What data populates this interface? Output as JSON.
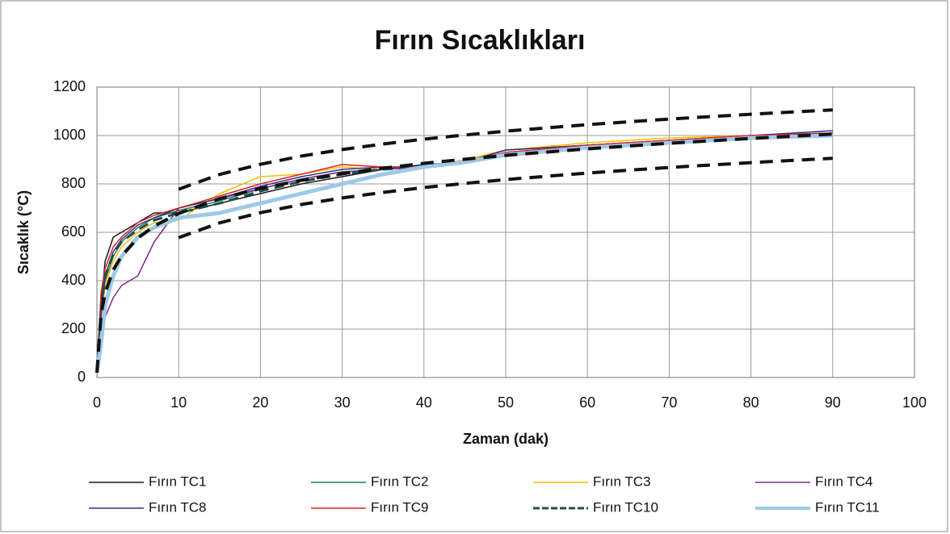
{
  "chart_data": {
    "type": "line",
    "title": "Fırın Sıcaklıkları",
    "x_label": "Zaman (dak)",
    "y_label": "Sıcaklık (°C)",
    "x": [
      0,
      0.5,
      1,
      2,
      3,
      5,
      7,
      10,
      15,
      20,
      25,
      30,
      35,
      40,
      45,
      50,
      60,
      70,
      80,
      90
    ],
    "xlim": [
      0,
      100
    ],
    "xticks": [
      0,
      10,
      20,
      30,
      40,
      50,
      60,
      70,
      80,
      90,
      100
    ],
    "ylim": [
      0,
      1200
    ],
    "yticks": [
      0,
      200,
      400,
      600,
      800,
      1000,
      1200
    ],
    "grid": true,
    "legend": "bottom",
    "series": [
      {
        "name": "Fırın TC1",
        "color": "#1a1a1a",
        "width": 1.5,
        "values": [
          20,
          300,
          480,
          580,
          600,
          640,
          680,
          680,
          720,
          760,
          800,
          830,
          860,
          880,
          890,
          940,
          960,
          980,
          1000,
          1010
        ]
      },
      {
        "name": "Fırın TC2",
        "color": "#1e7b4f",
        "width": 1.5,
        "values": [
          20,
          250,
          400,
          500,
          560,
          620,
          660,
          690,
          730,
          780,
          820,
          850,
          860,
          870,
          890,
          930,
          960,
          980,
          1000,
          1010
        ]
      },
      {
        "name": "Fırın TC3",
        "color": "#f5c000",
        "width": 1.5,
        "values": [
          20,
          220,
          380,
          480,
          540,
          600,
          640,
          650,
          760,
          830,
          840,
          870,
          860,
          870,
          900,
          940,
          970,
          990,
          1000,
          1010
        ]
      },
      {
        "name": "Fırın TC4",
        "color": "#7b2a8c",
        "width": 1.5,
        "values": [
          20,
          150,
          250,
          330,
          380,
          420,
          560,
          700,
          740,
          780,
          820,
          850,
          860,
          870,
          890,
          920,
          950,
          980,
          1000,
          1010
        ]
      },
      {
        "name": "Fırın TC8",
        "color": "#2e2e8c",
        "width": 1.5,
        "values": [
          20,
          260,
          420,
          520,
          570,
          630,
          660,
          700,
          740,
          790,
          830,
          860,
          870,
          870,
          890,
          940,
          960,
          980,
          1000,
          1020
        ]
      },
      {
        "name": "Fırın TC9",
        "color": "#e02020",
        "width": 1.5,
        "values": [
          20,
          350,
          450,
          540,
          580,
          640,
          670,
          700,
          750,
          800,
          840,
          880,
          870,
          870,
          890,
          930,
          960,
          980,
          1000,
          1010
        ]
      },
      {
        "name": "Fırın TC10",
        "color": "#1f4e4e",
        "width": 3,
        "dash": true,
        "values": [
          20,
          270,
          420,
          510,
          560,
          610,
          650,
          680,
          720,
          770,
          810,
          840,
          860,
          870,
          890,
          920,
          950,
          970,
          990,
          1000
        ]
      },
      {
        "name": "Fırın TC11",
        "color": "#9ec9e8",
        "width": 5,
        "values": [
          20,
          140,
          300,
          420,
          500,
          580,
          620,
          660,
          680,
          720,
          760,
          800,
          840,
          870,
          890,
          920,
          950,
          970,
          990,
          1000
        ]
      },
      {
        "color": "#111111",
        "width": 4,
        "dash": true,
        "values": [
          20,
          261,
          349,
          445,
          502,
          576,
          626,
          678,
          739,
          781,
          815,
          842,
          865,
          885,
          902,
          918,
          945,
          968,
          988,
          1006
        ]
      },
      {
        "color": "#111111",
        "width": 4,
        "dash": true,
        "values": [
          null,
          null,
          null,
          null,
          null,
          null,
          null,
          778,
          839,
          881,
          915,
          942,
          965,
          985,
          1002,
          1018,
          1045,
          1068,
          1088,
          1106
        ]
      },
      {
        "color": "#111111",
        "width": 4,
        "dash": true,
        "values": [
          null,
          null,
          null,
          null,
          null,
          null,
          null,
          578,
          639,
          681,
          715,
          742,
          765,
          785,
          802,
          818,
          845,
          868,
          888,
          906
        ]
      }
    ]
  }
}
